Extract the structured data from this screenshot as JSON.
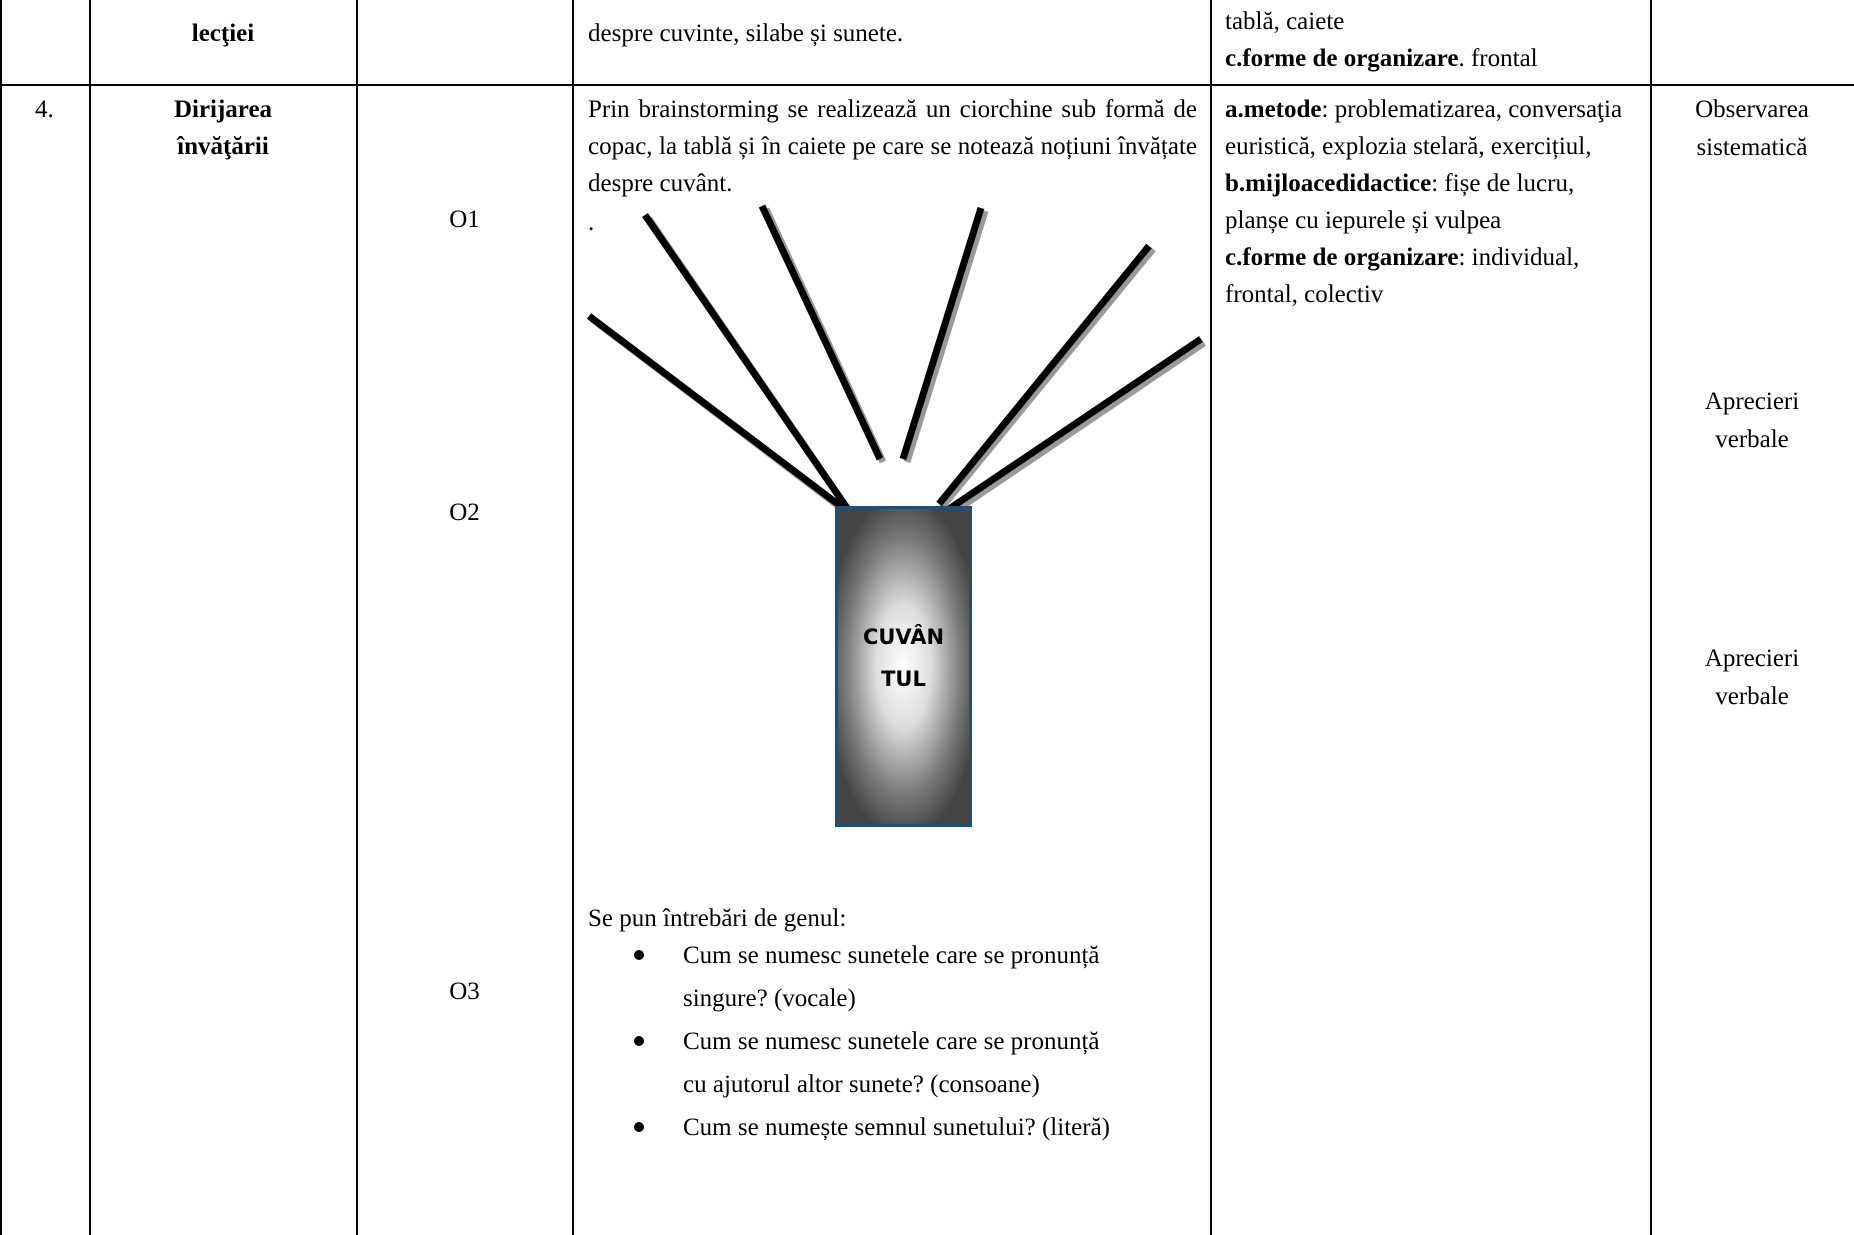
{
  "table": {
    "rows": [
      {
        "stage": "lecţiei",
        "content": {
          "paragraph": "despre cuvinte, silabe și sunete."
        },
        "resources": {
          "lines": [
            "tablă, caiete"
          ],
          "items": [
            {
              "label": "c.forme de organizare",
              "text": ". frontal"
            }
          ]
        }
      },
      {
        "number": "4.",
        "stage_lines": [
          "Dirijarea",
          "învăţării"
        ],
        "objectives": [
          "O1",
          "O2",
          "O3"
        ],
        "content": {
          "paragraph": "Prin brainstorming se realizează un ciorchine sub formă de copac, la tablă și în caiete pe care se notează noțiuni învățate despre cuvânt.",
          "dot": ".",
          "diagram_label": [
            "CUVÂN",
            "TUL"
          ],
          "questions_intro": "Se pun întrebări de genul:",
          "questions": [
            "Cum se numesc sunetele care se pronunță singure? (vocale)",
            "Cum se numesc sunetele care se pronunță cu ajutorul altor sunete? (consoane)",
            "Cum se numește semnul sunetului? (literă)"
          ]
        },
        "resources": {
          "items": [
            {
              "label": "a.metode",
              "text": ": problematizarea, conversaţia euristică, explozia stelară, exercițiul,"
            },
            {
              "label": "b.mijloacedidactice",
              "text": ": fișe de lucru, planșe cu iepurele și vulpea"
            },
            {
              "label": "c.forme de organizare",
              "text": ": individual, frontal, colectiv"
            }
          ]
        },
        "evaluation": [
          "Observarea sistematică",
          "Aprecieri verbale",
          "Aprecieri verbale"
        ]
      }
    ]
  }
}
